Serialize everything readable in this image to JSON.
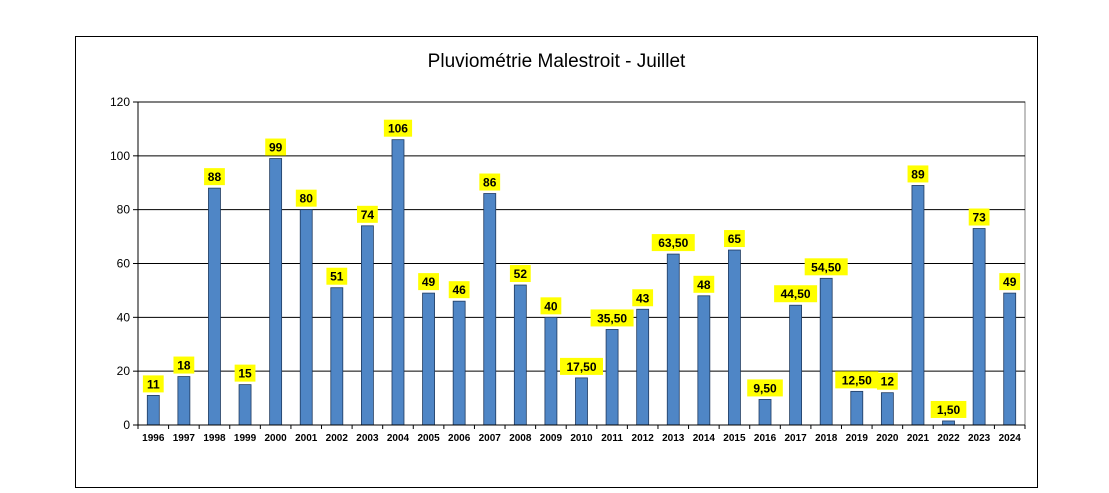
{
  "chart_data": {
    "type": "bar",
    "title": "Pluviométrie Malestroit - Juillet",
    "xlabel": "",
    "ylabel": "",
    "ylim": [
      0,
      120
    ],
    "yticks": [
      "0",
      "20",
      "40",
      "60",
      "80",
      "100",
      "120"
    ],
    "grid": true,
    "legend": "none",
    "colors": {
      "bar": "#4f86c6",
      "label_bg": "#ffff00"
    },
    "categories": [
      "1996",
      "1997",
      "1998",
      "1999",
      "2000",
      "2001",
      "2002",
      "2003",
      "2004",
      "2005",
      "2006",
      "2007",
      "2008",
      "2009",
      "2010",
      "2011",
      "2012",
      "2013",
      "2014",
      "2015",
      "2016",
      "2017",
      "2018",
      "2019",
      "2020",
      "2021",
      "2022",
      "2023",
      "2024"
    ],
    "values": [
      11,
      18,
      88,
      15,
      99,
      80,
      51,
      74,
      106,
      49,
      46,
      86,
      52,
      40,
      17.5,
      35.5,
      43,
      63.5,
      48,
      65,
      9.5,
      44.5,
      54.5,
      12.5,
      12,
      89,
      1.5,
      73,
      49
    ],
    "data_labels": [
      "11",
      "18",
      "88",
      "15",
      "99",
      "80",
      "51",
      "74",
      "106",
      "49",
      "46",
      "86",
      "52",
      "40",
      "17,50",
      "35,50",
      "43",
      "63,50",
      "48",
      "65",
      "9,50",
      "44,50",
      "54,50",
      "12,50",
      "12",
      "89",
      "1,50",
      "73",
      "49"
    ]
  }
}
